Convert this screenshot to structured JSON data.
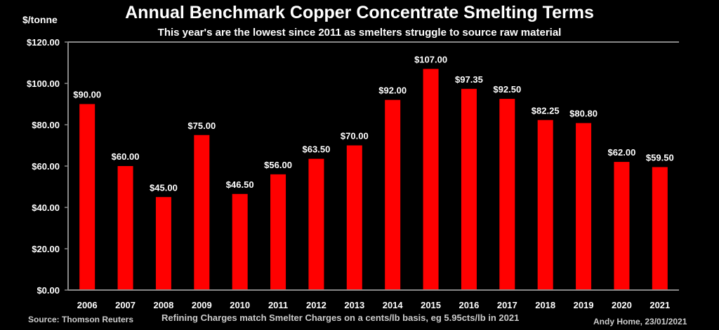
{
  "chart_data": {
    "type": "bar",
    "title": "Annual Benchmark Copper Concentrate Smelting Terms",
    "subtitle": "This year's are the lowest since 2011 as smelters struggle to source raw material",
    "ylabel": "$/tonne",
    "xlabel": "",
    "ylim": [
      0,
      120
    ],
    "yticks": [
      "$0.00",
      "$20.00",
      "$40.00",
      "$60.00",
      "$80.00",
      "$100.00",
      "$120.00"
    ],
    "grid": false,
    "categories": [
      "2006",
      "2007",
      "2008",
      "2009",
      "2010",
      "2011",
      "2012",
      "2013",
      "2014",
      "2015",
      "2016",
      "2017",
      "2018",
      "2019",
      "2020",
      "2021"
    ],
    "values": [
      90.0,
      60.0,
      45.0,
      75.0,
      46.5,
      56.0,
      63.5,
      70.0,
      92.0,
      107.0,
      97.35,
      92.5,
      82.25,
      80.8,
      62.0,
      59.5
    ],
    "data_labels": [
      "$90.00",
      "$60.00",
      "$45.00",
      "$75.00",
      "$46.50",
      "$56.00",
      "$63.50",
      "$70.00",
      "$92.00",
      "$107.00",
      "$97.35",
      "$92.50",
      "$82.25",
      "$80.80",
      "$62.00",
      "$59.50"
    ],
    "bar_color": "#ff0000",
    "background": "#000000"
  },
  "footer": {
    "source": "Source:  Thomson Reuters",
    "note": "Refining Charges match Smelter Charges on a cents/lb basis, eg 5.95cts/lb in 2021",
    "credit": "Andy Home, 23/01/2021"
  }
}
